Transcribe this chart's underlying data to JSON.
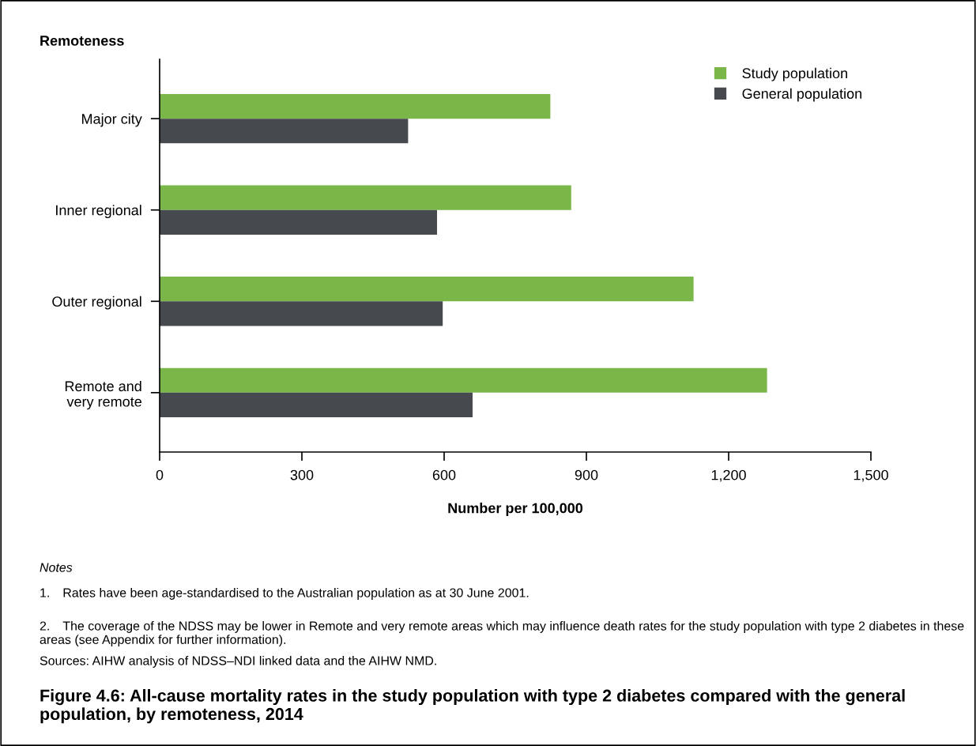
{
  "chart_data": {
    "type": "bar",
    "orientation": "horizontal",
    "title": "Figure 4.6: All-cause mortality rates in the study population with type 2 diabetes compared with the general population, by remoteness, 2014",
    "ylabel": "Remoteness",
    "xlabel": "Number per 100,000",
    "categories": [
      "Major city",
      "Inner regional",
      "Outer regional",
      "Remote and\nvery remote"
    ],
    "series": [
      {
        "name": "Study population",
        "color": "#7ab648",
        "values": [
          824,
          868,
          1126,
          1281
        ]
      },
      {
        "name": "General population",
        "color": "#464a4e",
        "values": [
          524,
          585,
          597,
          660
        ]
      }
    ],
    "xlim": [
      0,
      1500
    ],
    "xticks": [
      0,
      300,
      600,
      900,
      {
        "value": 1200,
        "label": "1,200"
      },
      {
        "value": 1500,
        "label": "1,500"
      }
    ],
    "grid": false,
    "legend": "top right",
    "annotations": [
      "Notes",
      "1. Rates have been age-standardised to the Australian population as at 30 June 2001.",
      "2. The coverage of the NDSS may be lower in Remote and very remote areas which may influence death rates for the study population with type 2 diabetes in these areas (see Appendix for further information).",
      "Sources: AIHW analysis of NDSS–NDI linked data and the AIHW NMD."
    ]
  }
}
